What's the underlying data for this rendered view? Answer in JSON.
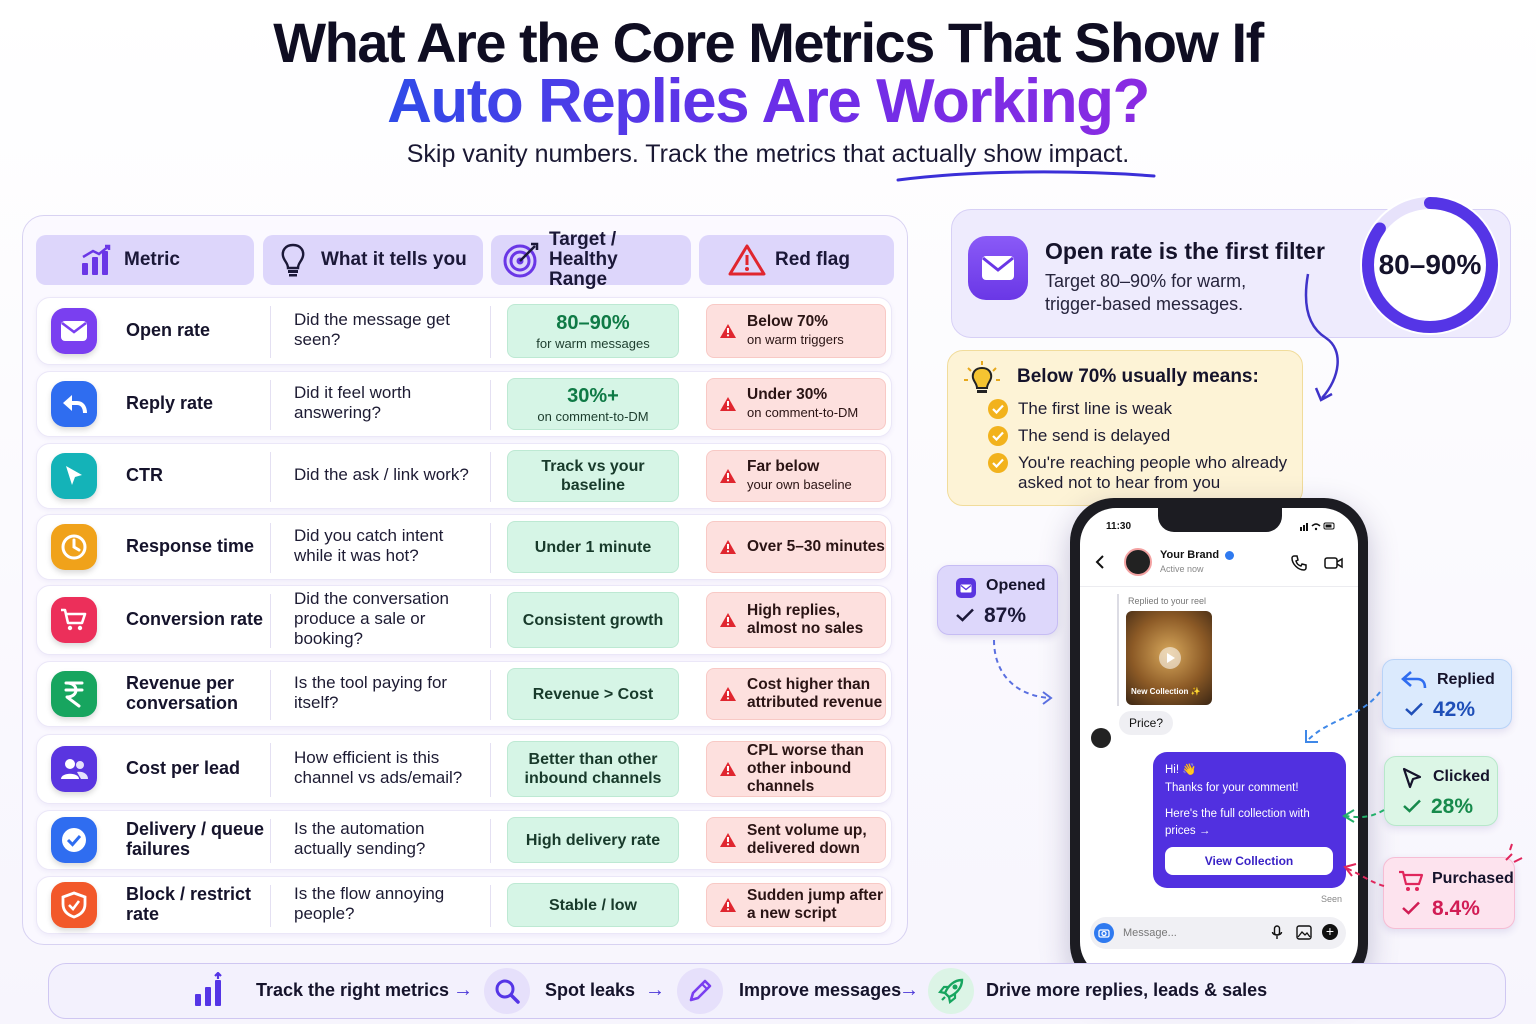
{
  "header": {
    "title_line1": "What Are the Core Metrics That Show If",
    "title_line2": "Auto Replies Are Working?",
    "subtitle": "Skip vanity numbers. Track the metrics that actually show impact."
  },
  "table": {
    "columns": [
      "Metric",
      "What it tells you",
      "Target / Healthy Range",
      "Red flag"
    ],
    "column_icons": [
      "bar-chart-icon",
      "lightbulb-icon",
      "target-icon",
      "warning-icon"
    ],
    "rows": [
      {
        "icon": "envelope-icon",
        "color": "#7a3ff0",
        "metric": "Open rate",
        "question": "Did the message get seen?",
        "target_main": "80–90%",
        "target_sub": "for warm messages",
        "flag_main": "Below 70%",
        "flag_sub": "on warm triggers"
      },
      {
        "icon": "reply-arrow-icon",
        "color": "#2f6df0",
        "metric": "Reply rate",
        "question": "Did it feel worth answering?",
        "target_main": "30%+",
        "target_sub": "on comment-to-DM",
        "flag_main": "Under 30%",
        "flag_sub": "on comment-to-DM"
      },
      {
        "icon": "cursor-icon",
        "color": "#14b3b8",
        "metric": "CTR",
        "question": "Did the ask / link work?",
        "target_main": "Track vs your baseline",
        "target_sub": "",
        "flag_main": "Far below",
        "flag_sub": "your own baseline"
      },
      {
        "icon": "clock-icon",
        "color": "#f0a21a",
        "metric": "Response time",
        "question": "Did you catch intent while it was hot?",
        "target_main": "Under 1 minute",
        "target_sub": "",
        "flag_main": "Over 5–30 minutes",
        "flag_sub": ""
      },
      {
        "icon": "cart-icon",
        "color": "#ec2f5a",
        "metric": "Conversion rate",
        "question": "Did the conversation produce a sale or booking?",
        "target_main": "Consistent growth",
        "target_sub": "",
        "flag_main": "High replies, almost no sales",
        "flag_sub": ""
      },
      {
        "icon": "rupee-icon",
        "color": "#17a55f",
        "metric": "Revenue per conversation",
        "question": "Is the tool paying for itself?",
        "target_main": "Revenue > Cost",
        "target_sub": "",
        "flag_main": "Cost higher than attributed revenue",
        "flag_sub": ""
      },
      {
        "icon": "users-icon",
        "color": "#5a35e0",
        "metric": "Cost per lead",
        "question": "How efficient is this channel vs ads/email?",
        "target_main": "Better than other inbound channels",
        "target_sub": "",
        "flag_main": "CPL worse than other inbound channels",
        "flag_sub": ""
      },
      {
        "icon": "check-badge-icon",
        "color": "#2f6df0",
        "metric": "Delivery / queue failures",
        "question": "Is the automation actually sending?",
        "target_main": "High delivery rate",
        "target_sub": "",
        "flag_main": "Sent volume up, delivered down",
        "flag_sub": ""
      },
      {
        "icon": "shield-icon",
        "color": "#f2582a",
        "metric": "Block / restrict rate",
        "question": "Is the flow annoying people?",
        "target_main": "Stable / low",
        "target_sub": "",
        "flag_main": "Sudden jump after a new script",
        "flag_sub": ""
      }
    ]
  },
  "open_rate_card": {
    "title": "Open rate is the first filter",
    "text": "Target 80–90% for warm, trigger-based messages.",
    "ring_label": "80–90%",
    "ring_fill": 0.85
  },
  "below_card": {
    "title": "Below 70% usually means:",
    "items": [
      "The first line is weak",
      "The send is delayed",
      "You're reaching people who already asked not to hear from you"
    ]
  },
  "phone": {
    "time": "11:30",
    "brand_name": "Your Brand",
    "brand_status": "Active now",
    "reel_label": "Replied to your reel",
    "reel_caption": "New Collection ✨",
    "user_message": "Price?",
    "reply_greeting": "Hi! 👋",
    "reply_line1": "Thanks for your comment!",
    "reply_line2": "Here's the full collection with prices →",
    "reply_button": "View Collection",
    "seen": "Seen",
    "input_placeholder": "Message..."
  },
  "stats": {
    "opened": {
      "label": "Opened",
      "value": "87%"
    },
    "replied": {
      "label": "Replied",
      "value": "42%"
    },
    "clicked": {
      "label": "Clicked",
      "value": "28%"
    },
    "purchased": {
      "label": "Purchased",
      "value": "8.4%"
    }
  },
  "footer": {
    "steps": [
      "Track the right metrics",
      "Spot leaks",
      "Improve messages",
      "Drive more replies, leads & sales"
    ],
    "icons": [
      "bar-chart-icon",
      "magnifier-icon",
      "pencil-icon",
      "rocket-icon"
    ]
  }
}
